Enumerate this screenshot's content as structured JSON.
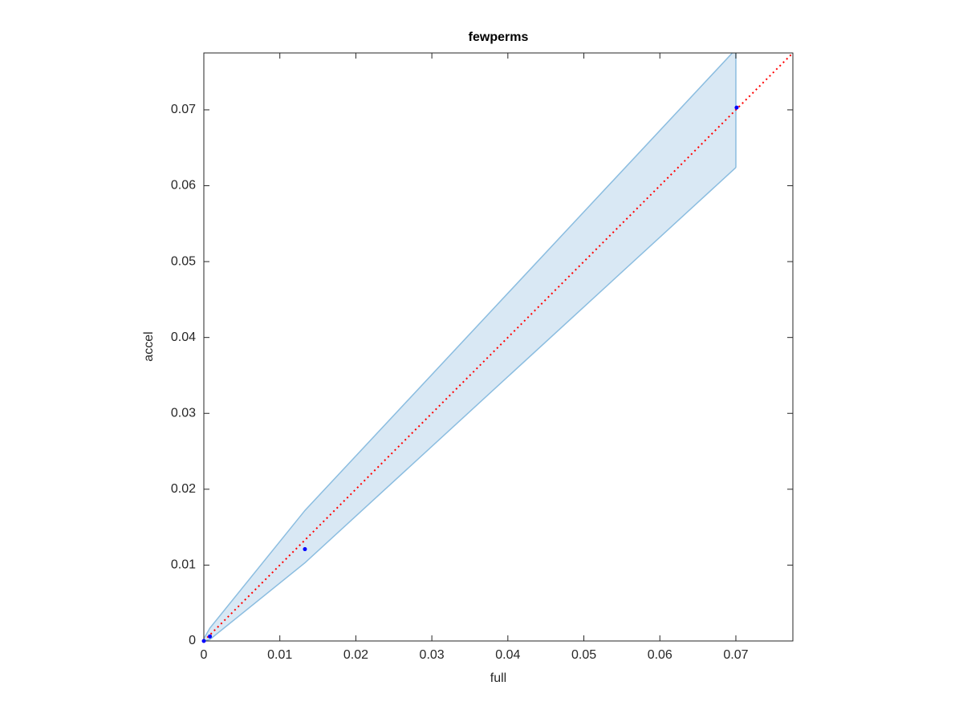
{
  "chart_data": {
    "type": "scatter",
    "title": "fewperms",
    "x_label": "full",
    "y_label": "accel",
    "xlim": [
      0,
      0.0775
    ],
    "ylim": [
      0,
      0.0775
    ],
    "xticks": [
      0,
      0.01,
      0.02,
      0.03,
      0.04,
      0.05,
      0.06,
      0.07
    ],
    "yticks": [
      0,
      0.01,
      0.02,
      0.03,
      0.04,
      0.05,
      0.06,
      0.07
    ],
    "series": [
      {
        "color": "#0000ff",
        "x": [
          0,
          0.0008,
          0.0133,
          0.0701
        ],
        "values": [
          0,
          0.0006,
          0.0121,
          0.0703
        ]
      }
    ],
    "band": {
      "color": "#8bbde0",
      "fill": "#d9e8f4",
      "x": [
        0,
        0.0008,
        0.0133,
        0.07
      ],
      "upper": [
        0.0003,
        0.0017,
        0.0172,
        0.078
      ],
      "lower": [
        0,
        0.0002,
        0.0103,
        0.0624
      ]
    },
    "reference_line": {
      "color": "#ff0000",
      "x": [
        0,
        0.0775
      ],
      "values": [
        0,
        0.0775
      ]
    }
  }
}
